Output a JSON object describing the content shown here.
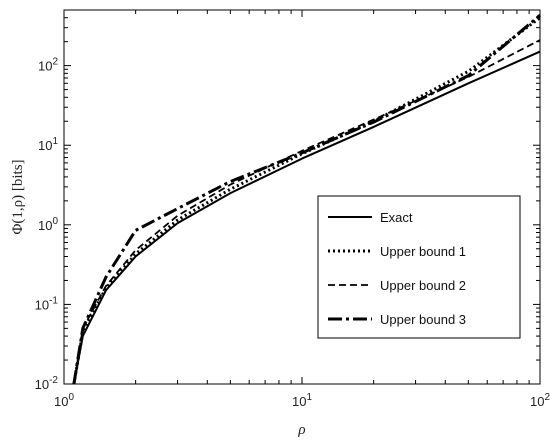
{
  "chart_data": {
    "type": "line",
    "xscale": "log",
    "yscale": "log",
    "xlim": [
      1,
      100
    ],
    "ylim": [
      0.01,
      500
    ],
    "xlabel": "ρ",
    "ylabel": "Φ(1,ρ)   [bits]",
    "x_ticks": [
      {
        "value": 1,
        "base": "10",
        "exp": "0"
      },
      {
        "value": 10,
        "base": "10",
        "exp": "1"
      },
      {
        "value": 100,
        "base": "10",
        "exp": "2"
      }
    ],
    "y_ticks": [
      {
        "value": 0.01,
        "base": "10",
        "exp": "-2"
      },
      {
        "value": 0.1,
        "base": "10",
        "exp": "-1"
      },
      {
        "value": 1,
        "base": "10",
        "exp": "0"
      },
      {
        "value": 10,
        "base": "10",
        "exp": "1"
      },
      {
        "value": 100,
        "base": "10",
        "exp": "2"
      }
    ],
    "grid": false,
    "legend_position": "right-lower",
    "series": [
      {
        "name": "Exact",
        "style": "solid",
        "x": [
          1.1,
          1.2,
          1.5,
          2,
          3,
          5,
          10,
          20,
          50,
          100
        ],
        "y": [
          0.01,
          0.04,
          0.15,
          0.4,
          1.05,
          2.5,
          6.8,
          17,
          60,
          150
        ]
      },
      {
        "name": "Upper bound 1",
        "style": "dotted",
        "x": [
          1.1,
          1.2,
          1.5,
          2,
          3,
          5,
          10,
          20,
          50,
          100
        ],
        "y": [
          0.01,
          0.045,
          0.16,
          0.43,
          1.15,
          2.8,
          7.8,
          20,
          85,
          400
        ]
      },
      {
        "name": "Upper bound 2",
        "style": "dashed",
        "x": [
          1.1,
          1.2,
          1.5,
          2,
          3,
          5,
          10,
          20,
          50,
          100
        ],
        "y": [
          0.01,
          0.05,
          0.17,
          0.48,
          1.3,
          3.2,
          8.5,
          21,
          72,
          210
        ]
      },
      {
        "name": "Upper bound 3",
        "style": "dashdot",
        "x": [
          1.1,
          1.2,
          1.5,
          2,
          3,
          5,
          10,
          20,
          50,
          100
        ],
        "y": [
          0.01,
          0.05,
          0.22,
          0.85,
          1.6,
          3.5,
          8.0,
          19.5,
          75,
          430
        ]
      }
    ]
  }
}
